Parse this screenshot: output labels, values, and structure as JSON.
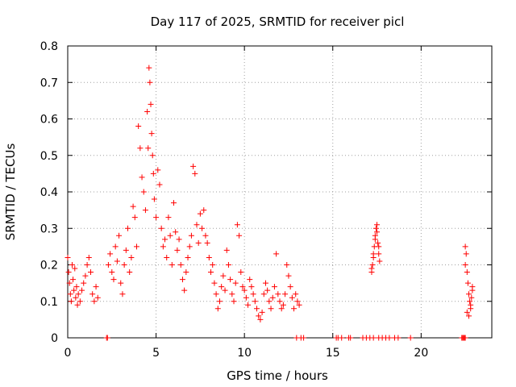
{
  "chart_data": {
    "type": "scatter",
    "title": "Day 117 of 2025, SRMTID for receiver picl",
    "xlabel": "GPS time / hours",
    "ylabel": "SRMTID / TECUs",
    "xlim": [
      0,
      24
    ],
    "ylim": [
      0,
      0.8
    ],
    "xticks": [
      0,
      5,
      10,
      15,
      20
    ],
    "xtick_labels": [
      "0",
      "5",
      "10",
      "15",
      "20"
    ],
    "yticks": [
      0,
      0.1,
      0.2,
      0.3,
      0.4,
      0.5,
      0.6,
      0.7,
      0.8
    ],
    "ytick_labels": [
      "0",
      "0.1",
      "0.2",
      "0.3",
      "0.4",
      "0.5",
      "0.6",
      "0.7",
      "0.8"
    ],
    "grid": true,
    "marker": "+",
    "marker_color": "#ff0000",
    "series": [
      {
        "name": "picl",
        "x": [
          0.0,
          0.05,
          0.1,
          0.15,
          0.2,
          0.25,
          0.3,
          0.35,
          0.4,
          0.45,
          0.5,
          0.55,
          0.6,
          0.7,
          0.8,
          0.9,
          1.0,
          1.1,
          1.2,
          1.3,
          1.4,
          1.5,
          1.6,
          1.7,
          2.2,
          2.25,
          2.3,
          2.4,
          2.5,
          2.6,
          2.7,
          2.8,
          2.9,
          3.0,
          3.1,
          3.2,
          3.3,
          3.4,
          3.5,
          3.6,
          3.7,
          3.8,
          3.9,
          4.0,
          4.1,
          4.2,
          4.3,
          4.4,
          4.5,
          4.55,
          4.6,
          4.65,
          4.7,
          4.75,
          4.8,
          4.85,
          4.9,
          5.0,
          5.1,
          5.2,
          5.3,
          5.4,
          5.5,
          5.6,
          5.7,
          5.8,
          5.9,
          6.0,
          6.1,
          6.2,
          6.3,
          6.4,
          6.5,
          6.6,
          6.7,
          6.8,
          6.9,
          7.0,
          7.1,
          7.2,
          7.3,
          7.4,
          7.5,
          7.6,
          7.7,
          7.8,
          7.9,
          8.0,
          8.1,
          8.2,
          8.3,
          8.4,
          8.5,
          8.6,
          8.7,
          8.8,
          8.9,
          9.0,
          9.1,
          9.2,
          9.3,
          9.4,
          9.5,
          9.6,
          9.7,
          9.8,
          9.9,
          10.0,
          10.1,
          10.2,
          10.3,
          10.4,
          10.5,
          10.6,
          10.7,
          10.8,
          10.9,
          11.0,
          11.1,
          11.2,
          11.3,
          11.4,
          11.5,
          11.6,
          11.7,
          11.8,
          11.9,
          12.0,
          12.1,
          12.2,
          12.3,
          12.4,
          12.5,
          12.6,
          12.7,
          12.8,
          12.9,
          13.0,
          13.1,
          12.95,
          13.2,
          13.35,
          15.2,
          15.3,
          15.5,
          15.9,
          16.0,
          16.7,
          16.9,
          17.1,
          17.3,
          17.6,
          17.8,
          18.0,
          18.2,
          18.5,
          18.7,
          19.4,
          22.3,
          22.35,
          22.4,
          22.45,
          22.5,
          17.2,
          17.25,
          17.3,
          17.35,
          17.4,
          17.45,
          17.5,
          17.55,
          17.6,
          17.65,
          17.2,
          17.3,
          17.4,
          17.5,
          17.6,
          22.5,
          22.55,
          22.6,
          22.65,
          22.7,
          22.75,
          22.8,
          22.85,
          22.9,
          22.5,
          22.6,
          22.7,
          22.8,
          22.9
        ],
        "y": [
          0.22,
          0.18,
          0.15,
          0.12,
          0.1,
          0.2,
          0.16,
          0.13,
          0.19,
          0.11,
          0.14,
          0.09,
          0.12,
          0.1,
          0.13,
          0.15,
          0.17,
          0.2,
          0.22,
          0.18,
          0.12,
          0.1,
          0.14,
          0.11,
          0.0,
          0.0,
          0.2,
          0.23,
          0.18,
          0.16,
          0.25,
          0.21,
          0.28,
          0.15,
          0.12,
          0.2,
          0.24,
          0.3,
          0.18,
          0.22,
          0.36,
          0.33,
          0.25,
          0.58,
          0.52,
          0.44,
          0.4,
          0.35,
          0.62,
          0.52,
          0.74,
          0.7,
          0.64,
          0.56,
          0.5,
          0.45,
          0.38,
          0.33,
          0.46,
          0.42,
          0.3,
          0.25,
          0.27,
          0.22,
          0.33,
          0.28,
          0.2,
          0.37,
          0.29,
          0.24,
          0.27,
          0.2,
          0.16,
          0.13,
          0.18,
          0.22,
          0.25,
          0.28,
          0.47,
          0.45,
          0.31,
          0.26,
          0.34,
          0.3,
          0.35,
          0.28,
          0.26,
          0.22,
          0.18,
          0.2,
          0.15,
          0.12,
          0.08,
          0.1,
          0.14,
          0.17,
          0.13,
          0.24,
          0.2,
          0.16,
          0.12,
          0.1,
          0.15,
          0.31,
          0.28,
          0.18,
          0.14,
          0.13,
          0.11,
          0.09,
          0.16,
          0.14,
          0.12,
          0.1,
          0.08,
          0.06,
          0.05,
          0.07,
          0.12,
          0.15,
          0.13,
          0.1,
          0.08,
          0.11,
          0.14,
          0.23,
          0.12,
          0.1,
          0.08,
          0.09,
          0.12,
          0.2,
          0.17,
          0.14,
          0.11,
          0.08,
          0.12,
          0.1,
          0.09,
          0.0,
          0.0,
          0.0,
          0.0,
          0.0,
          0.0,
          0.0,
          0.0,
          0.0,
          0.0,
          0.0,
          0.0,
          0.0,
          0.0,
          0.0,
          0.0,
          0.0,
          0.0,
          0.0,
          0.0,
          0.0,
          0.0,
          0.0,
          0.0,
          0.19,
          0.2,
          0.22,
          0.25,
          0.27,
          0.3,
          0.29,
          0.26,
          0.23,
          0.21,
          0.18,
          0.23,
          0.28,
          0.31,
          0.25,
          0.25,
          0.23,
          0.18,
          0.15,
          0.12,
          0.1,
          0.08,
          0.11,
          0.13,
          0.2,
          0.07,
          0.06,
          0.09,
          0.14
        ]
      }
    ]
  }
}
